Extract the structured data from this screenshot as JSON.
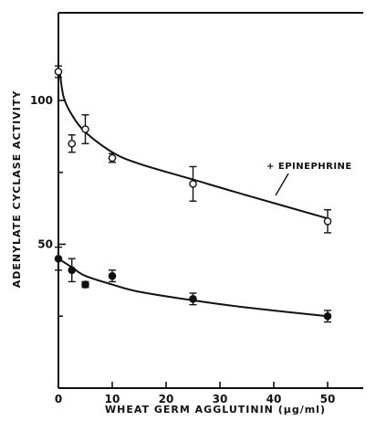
{
  "chart_data": {
    "type": "scatter",
    "title": "",
    "xlabel": "WHEAT GERM AGGLUTININ (μg/ml)",
    "ylabel": "ADENYLATE CYCLASE ACTIVITY",
    "xlim": [
      0,
      55
    ],
    "ylim": [
      0,
      130
    ],
    "x_ticks": [
      0,
      10,
      20,
      30,
      40,
      50
    ],
    "y_ticks": [
      50,
      100
    ],
    "y_minor_ticks": [
      25,
      75
    ],
    "grid": false,
    "series": [
      {
        "name": "+ EPINEPHRINE",
        "marker": "open-circle",
        "points": [
          {
            "x": 0,
            "y": 110,
            "err": 2
          },
          {
            "x": 2.5,
            "y": 85,
            "err": 3
          },
          {
            "x": 5,
            "y": 90,
            "err": 5
          },
          {
            "x": 10,
            "y": 80,
            "err": 1.5
          },
          {
            "x": 25,
            "y": 71,
            "err": 6
          },
          {
            "x": 50,
            "y": 58,
            "err": 4
          }
        ],
        "fit": [
          [
            0.3,
            109
          ],
          [
            1,
            101
          ],
          [
            2.5,
            95
          ],
          [
            5,
            89
          ],
          [
            10,
            82
          ],
          [
            15,
            78
          ],
          [
            25,
            72.5
          ],
          [
            35,
            67
          ],
          [
            50,
            59
          ]
        ]
      },
      {
        "name": "",
        "marker": "filled-circle",
        "points": [
          {
            "x": 0,
            "y": 45,
            "err": 4
          },
          {
            "x": 2.5,
            "y": 41,
            "err": 4
          },
          {
            "x": 5,
            "y": 36,
            "err": 1
          },
          {
            "x": 10,
            "y": 39,
            "err": 2
          },
          {
            "x": 25,
            "y": 31,
            "err": 2
          },
          {
            "x": 50,
            "y": 25,
            "err": 2
          }
        ],
        "fit": [
          [
            0,
            45
          ],
          [
            2.5,
            42
          ],
          [
            5,
            39
          ],
          [
            10,
            36
          ],
          [
            15,
            33.5
          ],
          [
            25,
            30.5
          ],
          [
            35,
            28
          ],
          [
            50,
            25
          ]
        ]
      }
    ],
    "annotations": [
      {
        "text": "+ EPINEPHRINE",
        "target_series": 0
      }
    ]
  }
}
